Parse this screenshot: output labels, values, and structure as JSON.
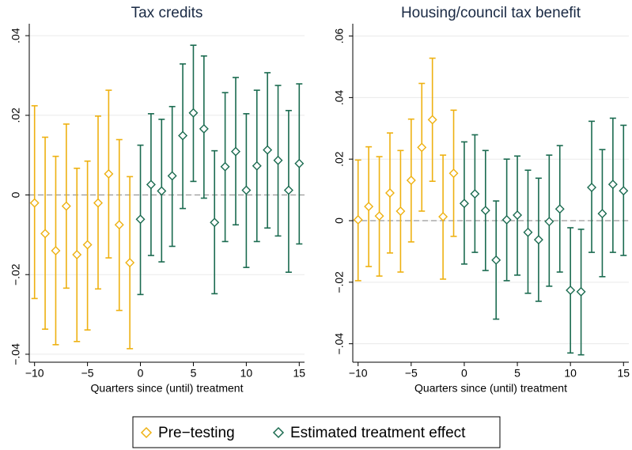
{
  "chart_data": [
    {
      "type": "errorbar",
      "title": "Tax credits",
      "x_label": "Quarters since (until) treatment",
      "xlim": [
        -10.5,
        15.5
      ],
      "ylim": [
        -0.042,
        0.043
      ],
      "hline": 0,
      "grid": true,
      "xticks": [
        {
          "value": -10,
          "label": "−10"
        },
        {
          "value": -5,
          "label": "−5"
        },
        0,
        5,
        10,
        15
      ],
      "yticks": [
        {
          "value": -0.04,
          "label": "−.04"
        },
        {
          "value": -0.02,
          "label": "−.02"
        },
        0,
        {
          "value": 0.02,
          "label": ".02"
        },
        {
          "value": 0.04,
          "label": ".04"
        }
      ],
      "series": [
        {
          "name": "Pre−testing",
          "color": "#eeb111",
          "x": [
            -10,
            -9,
            -8,
            -7,
            -6,
            -5,
            -4,
            -3,
            -2,
            -1
          ],
          "values": [
            -0.002,
            -0.0097,
            -0.014,
            -0.0028,
            -0.015,
            -0.0125,
            -0.002,
            0.0053,
            -0.0075,
            -0.017
          ],
          "lower": [
            -0.026,
            -0.0337,
            -0.0376,
            -0.0234,
            -0.0368,
            -0.0339,
            -0.0236,
            -0.0158,
            -0.029,
            -0.0386
          ],
          "upper": [
            0.0224,
            0.0145,
            0.0097,
            0.0178,
            0.0067,
            0.0085,
            0.0198,
            0.0263,
            0.0139,
            0.0046
          ]
        },
        {
          "name": "Estimated treatment effect",
          "color": "#1b6b50",
          "x": [
            0,
            1,
            2,
            3,
            4,
            5,
            6,
            7,
            8,
            9,
            10,
            11,
            12,
            13,
            14,
            15
          ],
          "values": [
            -0.0061,
            0.0026,
            0.001,
            0.0048,
            0.0149,
            0.0206,
            0.0166,
            -0.0069,
            0.0071,
            0.0109,
            0.0012,
            0.0073,
            0.0113,
            0.0087,
            0.0012,
            0.0079
          ],
          "lower": [
            -0.025,
            -0.0152,
            -0.0168,
            -0.0129,
            -0.0034,
            0.0034,
            -0.0008,
            -0.0248,
            -0.0117,
            -0.0075,
            -0.0182,
            -0.0117,
            -0.0083,
            -0.0103,
            -0.0194,
            -0.0123
          ],
          "upper": [
            0.0125,
            0.0204,
            0.019,
            0.0222,
            0.0329,
            0.0376,
            0.0349,
            0.0111,
            0.0257,
            0.0295,
            0.0204,
            0.0263,
            0.0307,
            0.0275,
            0.0212,
            0.0279
          ]
        }
      ]
    },
    {
      "type": "errorbar",
      "title": "Housing/council tax benefit",
      "x_label": "Quarters since (until) treatment",
      "xlim": [
        -10.5,
        15.5
      ],
      "ylim": [
        -0.046,
        0.064
      ],
      "hline": 0,
      "grid": true,
      "xticks": [
        {
          "value": -10,
          "label": "−10"
        },
        {
          "value": -5,
          "label": "−5"
        },
        0,
        5,
        10,
        15
      ],
      "yticks": [
        {
          "value": -0.04,
          "label": "−.04"
        },
        {
          "value": -0.02,
          "label": "−.02"
        },
        0,
        {
          "value": 0.02,
          "label": ".02"
        },
        {
          "value": 0.04,
          "label": ".04"
        },
        {
          "value": 0.06,
          "label": ".06"
        }
      ],
      "series": [
        {
          "color": "#eeb111",
          "x": [
            -10,
            -9,
            -8,
            -7,
            -6,
            -5,
            -4,
            -3,
            -2,
            -1
          ],
          "values": [
            0.0003,
            0.0046,
            0.0015,
            0.009,
            0.0031,
            0.0131,
            0.0238,
            0.0328,
            0.0013,
            0.0154
          ],
          "lower": [
            -0.0195,
            -0.0149,
            -0.018,
            -0.0105,
            -0.0167,
            -0.0069,
            0.0031,
            0.0128,
            -0.019,
            -0.0051
          ],
          "upper": [
            0.0197,
            0.024,
            0.0208,
            0.0285,
            0.0228,
            0.033,
            0.0446,
            0.0528,
            0.0213,
            0.0359
          ]
        },
        {
          "color": "#1b6b50",
          "x": [
            0,
            1,
            2,
            3,
            4,
            5,
            6,
            7,
            8,
            9,
            10,
            11,
            12,
            13,
            14,
            15
          ],
          "values": [
            0.0056,
            0.0087,
            0.0033,
            -0.0128,
            0.0003,
            0.0018,
            -0.0038,
            -0.0062,
            -0.0003,
            0.0038,
            -0.0226,
            -0.0231,
            0.0108,
            0.0023,
            0.0118,
            0.0097
          ],
          "lower": [
            -0.0141,
            -0.0103,
            -0.0162,
            -0.032,
            -0.0195,
            -0.0177,
            -0.0236,
            -0.0262,
            -0.0213,
            -0.0167,
            -0.043,
            -0.0436,
            -0.0103,
            -0.0182,
            -0.0103,
            -0.0113
          ],
          "upper": [
            0.0256,
            0.0279,
            0.0228,
            0.0064,
            0.02,
            0.021,
            0.0164,
            0.0138,
            0.0213,
            0.0244,
            -0.0023,
            -0.0028,
            0.0323,
            0.0231,
            0.0333,
            0.031
          ]
        }
      ]
    }
  ]
}
